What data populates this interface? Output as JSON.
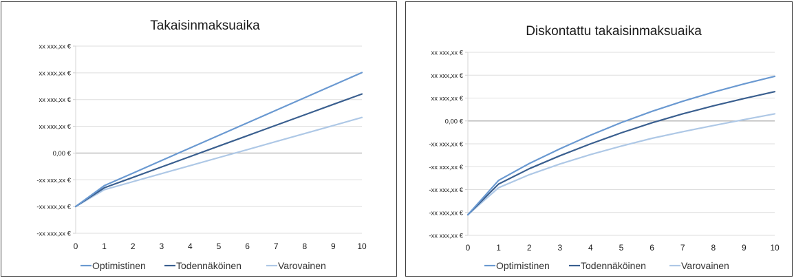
{
  "chart_data": [
    {
      "type": "line",
      "title": "Takaisinmaksuaika",
      "x": [
        0,
        1,
        2,
        3,
        4,
        5,
        6,
        7,
        8,
        9,
        10
      ],
      "xlim": [
        0,
        10
      ],
      "ylim": [
        -3,
        4
      ],
      "yticks": [
        4,
        3,
        2,
        1,
        0,
        -1,
        -2,
        -3
      ],
      "ytick_labels": [
        "xx xxx,xx €",
        "xx xxx,xx €",
        "xx xxx,xx €",
        "xx xxx,xx €",
        "0,00 €",
        "-xx xxx,xx €",
        "-xx xxx,xx €",
        "-xx xxx,xx €"
      ],
      "zero_line": true,
      "legend_position": "bottom",
      "series": [
        {
          "name": "Optimistinen",
          "color": "#6a99d1",
          "values": [
            -2,
            -1.22,
            -0.75,
            -0.28,
            0.19,
            0.66,
            1.13,
            1.6,
            2.07,
            2.54,
            3.01
          ]
        },
        {
          "name": "Todennäköinen",
          "color": "#3a5f8f",
          "values": [
            -2,
            -1.3,
            -0.91,
            -0.52,
            -0.13,
            0.26,
            0.65,
            1.04,
            1.43,
            1.82,
            2.21
          ]
        },
        {
          "name": "Varovainen",
          "color": "#aec8e6",
          "values": [
            -2,
            -1.37,
            -1.07,
            -0.77,
            -0.47,
            -0.17,
            0.13,
            0.43,
            0.73,
            1.03,
            1.33
          ]
        }
      ]
    },
    {
      "type": "line",
      "title": "Diskontattu takaisinmaksuaika",
      "x": [
        0,
        1,
        2,
        3,
        4,
        5,
        6,
        7,
        8,
        9,
        10
      ],
      "xlim": [
        0,
        10
      ],
      "ylim": [
        -5,
        3
      ],
      "yticks": [
        3,
        2,
        1,
        0,
        -1,
        -2,
        -3,
        -4,
        -5
      ],
      "ytick_labels": [
        "xx xxx,xx €",
        "xx xxx,xx €",
        "xx xxx,xx €",
        "0,00 €",
        "-xx xxx,xx €",
        "-xx xxx,xx €",
        "-xx xxx,xx €",
        "-xx xxx,xx €",
        "-xx xxx,xx €"
      ],
      "zero_line": true,
      "legend_position": "bottom",
      "series": [
        {
          "name": "Optimistinen",
          "color": "#6a99d1",
          "values": [
            -4.1,
            -2.6,
            -1.86,
            -1.22,
            -0.62,
            -0.07,
            0.42,
            0.86,
            1.26,
            1.62,
            1.95
          ]
        },
        {
          "name": "Todennäköinen",
          "color": "#3a5f8f",
          "values": [
            -4.1,
            -2.76,
            -2.09,
            -1.52,
            -1.0,
            -0.52,
            -0.08,
            0.31,
            0.66,
            0.98,
            1.28
          ]
        },
        {
          "name": "Varovainen",
          "color": "#aec8e6",
          "values": [
            -4.1,
            -2.92,
            -2.35,
            -1.88,
            -1.47,
            -1.1,
            -0.76,
            -0.47,
            -0.2,
            0.06,
            0.31
          ]
        }
      ]
    }
  ]
}
